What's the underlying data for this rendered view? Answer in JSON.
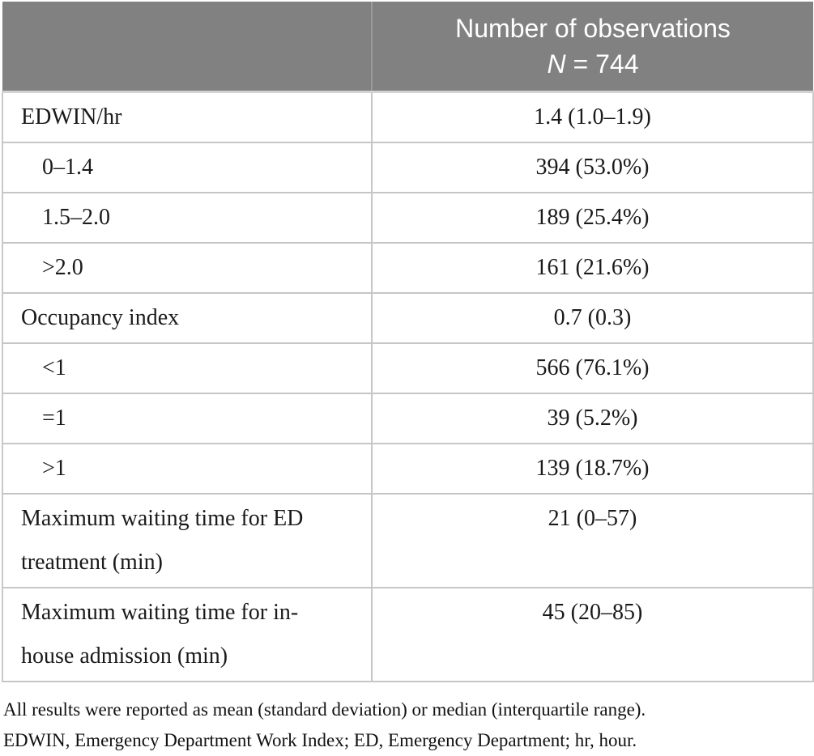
{
  "table": {
    "header": {
      "title": "Number of observations",
      "n_symbol": "N",
      "n_value": " = 744"
    },
    "rows": [
      {
        "label": "EDWIN/hr",
        "value": "1.4 (1.0–1.9)",
        "indent": false
      },
      {
        "label": "0–1.4",
        "value": "394 (53.0%)",
        "indent": true
      },
      {
        "label": "1.5–2.0",
        "value": "189 (25.4%)",
        "indent": true
      },
      {
        "label": ">2.0",
        "value": "161 (21.6%)",
        "indent": true
      },
      {
        "label": "Occupancy index",
        "value": "0.7 (0.3)",
        "indent": false
      },
      {
        "label": "<1",
        "value": "566 (76.1%)",
        "indent": true
      },
      {
        "label": "=1",
        "value": "39 (5.2%)",
        "indent": true
      },
      {
        "label": ">1",
        "value": "139 (18.7%)",
        "indent": true
      },
      {
        "label": "Maximum waiting time for ED treatment (min)",
        "value": "21 (0–57)",
        "indent": false
      },
      {
        "label": "Maximum waiting time for in-house admission (min)",
        "value": "45 (20–85)",
        "indent": false
      }
    ]
  },
  "footnotes": [
    "All results were reported as mean (standard deviation) or median (interquartile range).",
    "EDWIN, Emergency Department Work Index; ED, Emergency Department; hr, hour."
  ],
  "colors": {
    "header_background": "#818181",
    "header_text": "#ffffff",
    "body_background": "#ffffff",
    "border": "#c6c6c6",
    "header_divider": "#9b9b9b",
    "text": "#1a1a1a"
  }
}
